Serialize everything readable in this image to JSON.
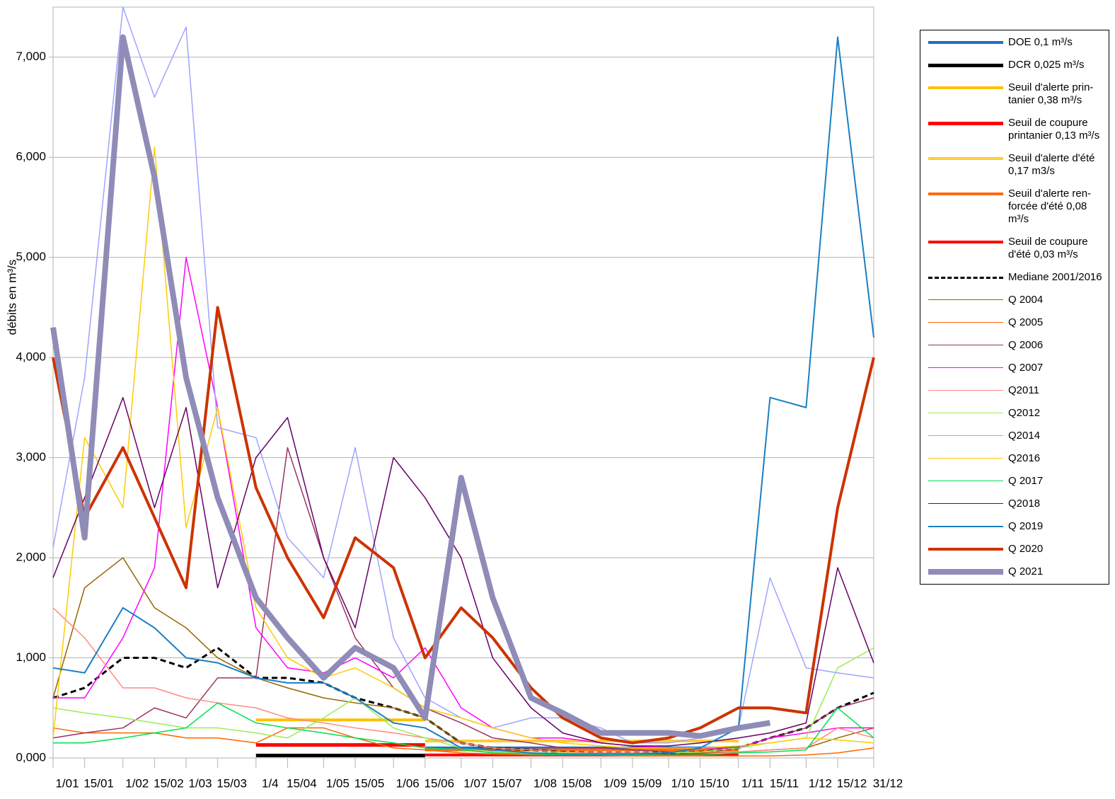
{
  "chart_data": {
    "type": "line",
    "y_label": "débits en m³/s",
    "x": [
      1,
      15,
      32,
      46,
      60,
      74,
      91,
      105,
      121,
      135,
      152,
      166,
      182,
      196,
      213,
      227,
      244,
      258,
      274,
      288,
      305,
      319,
      335,
      349,
      365
    ],
    "xlim": [
      1,
      365
    ],
    "xticks": [
      {
        "value": 1,
        "label": "1/01"
      },
      {
        "value": 15,
        "label": "15/01"
      },
      {
        "value": 32,
        "label": "1/02"
      },
      {
        "value": 46,
        "label": "15/02"
      },
      {
        "value": 60,
        "label": "1/03"
      },
      {
        "value": 74,
        "label": "15/03"
      },
      {
        "value": 91,
        "label": "1/4"
      },
      {
        "value": 105,
        "label": "15/04"
      },
      {
        "value": 121,
        "label": "1/05"
      },
      {
        "value": 135,
        "label": "15/05"
      },
      {
        "value": 152,
        "label": "1/06"
      },
      {
        "value": 166,
        "label": "15/06"
      },
      {
        "value": 182,
        "label": "1/07"
      },
      {
        "value": 196,
        "label": "15/07"
      },
      {
        "value": 213,
        "label": "1/08"
      },
      {
        "value": 227,
        "label": "15/08"
      },
      {
        "value": 244,
        "label": "1/09"
      },
      {
        "value": 258,
        "label": "15/09"
      },
      {
        "value": 274,
        "label": "1/10"
      },
      {
        "value": 288,
        "label": "15/10"
      },
      {
        "value": 305,
        "label": "1/11"
      },
      {
        "value": 319,
        "label": "15/11"
      },
      {
        "value": 335,
        "label": "1/12"
      },
      {
        "value": 349,
        "label": "15/12"
      },
      {
        "value": 365,
        "label": "31/12"
      }
    ],
    "ylim": [
      0,
      7.5
    ],
    "yticks": [
      {
        "value": 0,
        "label": "0,000"
      },
      {
        "value": 1,
        "label": "1,000"
      },
      {
        "value": 2,
        "label": "2,000"
      },
      {
        "value": 3,
        "label": "3,000"
      },
      {
        "value": 4,
        "label": "4,000"
      },
      {
        "value": 5,
        "label": "5,000"
      },
      {
        "value": 6,
        "label": "6,000"
      },
      {
        "value": 7,
        "label": "7,000"
      }
    ],
    "grid": true,
    "legend": "right",
    "series": [
      {
        "name": "DOE 0,1 m³/s",
        "color": "#1f6fc0",
        "width": 4,
        "values": [
          null,
          null,
          null,
          null,
          null,
          null,
          null,
          null,
          null,
          null,
          null,
          0.1,
          0.1,
          0.1,
          0.1,
          0.1,
          0.1,
          0.1,
          0.1,
          0.1,
          0.1,
          null,
          null,
          null,
          null
        ]
      },
      {
        "name": "DCR 0,025 m³/s",
        "color": "#000000",
        "width": 5,
        "values": [
          null,
          null,
          null,
          null,
          null,
          null,
          0.025,
          0.025,
          0.025,
          0.025,
          0.025,
          0.025,
          null,
          null,
          null,
          null,
          null,
          null,
          null,
          null,
          null,
          null,
          null,
          null,
          null
        ]
      },
      {
        "name": "Seuil d'alerte prin-\ntanier 0,38 m³/s",
        "color": "#ffc000",
        "width": 4,
        "values": [
          null,
          null,
          null,
          null,
          null,
          null,
          0.38,
          0.38,
          0.38,
          0.38,
          0.38,
          0.38,
          null,
          null,
          null,
          null,
          null,
          null,
          null,
          null,
          null,
          null,
          null,
          null,
          null
        ]
      },
      {
        "name": "Seuil de coupure\nprintanier 0,13 m³/s",
        "color": "#ff0000",
        "width": 5,
        "values": [
          null,
          null,
          null,
          null,
          null,
          null,
          0.13,
          0.13,
          0.13,
          0.13,
          0.13,
          0.13,
          null,
          null,
          null,
          null,
          null,
          null,
          null,
          null,
          null,
          null,
          null,
          null,
          null
        ]
      },
      {
        "name": "Seuil d'alerte d'été\n0,17 m3/s",
        "color": "#ffcc33",
        "width": 4,
        "values": [
          null,
          null,
          null,
          null,
          null,
          null,
          null,
          null,
          null,
          null,
          null,
          0.17,
          0.17,
          0.17,
          0.17,
          0.17,
          0.17,
          0.17,
          0.17,
          0.17,
          0.17,
          null,
          null,
          null,
          null
        ]
      },
      {
        "name": "Seuil d'alerte ren-\nforcée d'été 0,08\nm³/s",
        "color": "#ff6a13",
        "width": 4,
        "values": [
          null,
          null,
          null,
          null,
          null,
          null,
          null,
          null,
          null,
          null,
          null,
          0.08,
          0.08,
          0.08,
          0.08,
          0.08,
          0.08,
          0.08,
          0.08,
          0.08,
          0.08,
          null,
          null,
          null,
          null
        ]
      },
      {
        "name": "Seuil de coupure\nd'été 0,03 m³/s",
        "color": "#ff0000",
        "width": 4,
        "values": [
          null,
          null,
          null,
          null,
          null,
          null,
          null,
          null,
          null,
          null,
          null,
          0.03,
          0.03,
          0.03,
          0.03,
          0.03,
          0.03,
          0.03,
          0.03,
          0.03,
          0.03,
          null,
          null,
          null,
          null
        ]
      },
      {
        "name": "Mediane 2001/2016",
        "color": "#000000",
        "width": 3,
        "dash": true,
        "values": [
          0.6,
          0.7,
          1.0,
          1.0,
          0.9,
          1.1,
          0.8,
          0.8,
          0.75,
          0.6,
          0.5,
          0.4,
          0.15,
          0.1,
          0.08,
          0.06,
          0.05,
          0.05,
          0.05,
          0.06,
          0.1,
          0.2,
          0.3,
          0.5,
          0.65
        ]
      },
      {
        "name": "Q 2004",
        "color": "#996600",
        "width": 1.5,
        "values": [
          0.6,
          1.7,
          2.0,
          1.5,
          1.3,
          1.0,
          0.8,
          0.7,
          0.6,
          0.55,
          0.5,
          0.4,
          0.15,
          0.1,
          0.08,
          0.06,
          0.05,
          0.05,
          0.05,
          0.05,
          0.06,
          0.08,
          0.1,
          0.2,
          0.3
        ]
      },
      {
        "name": "Q 2005",
        "color": "#ff6600",
        "width": 1.5,
        "values": [
          0.3,
          0.25,
          0.25,
          0.25,
          0.2,
          0.2,
          0.15,
          0.3,
          0.3,
          0.2,
          0.1,
          0.08,
          0.05,
          0.04,
          0.03,
          0.03,
          0.03,
          0.02,
          0.02,
          0.02,
          0.02,
          0.02,
          0.03,
          0.05,
          0.1
        ]
      },
      {
        "name": "Q 2006",
        "color": "#993366",
        "width": 1.5,
        "values": [
          0.2,
          0.25,
          0.3,
          0.5,
          0.4,
          0.8,
          0.8,
          3.1,
          2.0,
          1.2,
          0.7,
          0.5,
          0.35,
          0.2,
          0.15,
          0.1,
          0.1,
          0.08,
          0.06,
          0.06,
          0.1,
          0.2,
          0.3,
          0.5,
          0.6
        ]
      },
      {
        "name": "Q 2007",
        "color": "#ff00ff",
        "width": 1.5,
        "values": [
          0.6,
          0.6,
          1.2,
          1.9,
          5.0,
          3.5,
          1.3,
          0.9,
          0.85,
          1.0,
          0.8,
          1.1,
          0.5,
          0.3,
          0.2,
          0.2,
          0.15,
          0.12,
          0.1,
          0.1,
          0.1,
          0.2,
          0.25,
          0.3,
          0.3
        ]
      },
      {
        "name": "Q2011",
        "color": "#ff8a80",
        "width": 1.5,
        "values": [
          1.5,
          1.2,
          0.7,
          0.7,
          0.6,
          0.55,
          0.5,
          0.4,
          0.35,
          0.3,
          0.25,
          0.2,
          0.15,
          0.1,
          0.08,
          0.06,
          0.05,
          0.05,
          0.05,
          0.06,
          0.06,
          0.08,
          0.1,
          0.3,
          0.2
        ]
      },
      {
        "name": "Q2012",
        "color": "#99ee55",
        "width": 1.5,
        "values": [
          0.5,
          0.45,
          0.4,
          0.35,
          0.3,
          0.3,
          0.25,
          0.2,
          0.4,
          0.6,
          0.3,
          0.2,
          0.1,
          0.06,
          0.05,
          0.05,
          0.04,
          0.04,
          0.05,
          0.06,
          0.1,
          0.15,
          0.2,
          0.9,
          1.1
        ]
      },
      {
        "name": "Q2014",
        "color": "#9fa4ff",
        "width": 1.5,
        "values": [
          2.1,
          3.8,
          7.5,
          6.6,
          7.3,
          3.3,
          3.2,
          2.2,
          1.8,
          3.1,
          1.2,
          0.6,
          0.4,
          0.3,
          0.4,
          0.4,
          0.3,
          0.15,
          0.15,
          0.2,
          0.3,
          1.8,
          0.9,
          0.85,
          0.8
        ]
      },
      {
        "name": "Q2016",
        "color": "#ffcc00",
        "width": 1.5,
        "values": [
          0.2,
          3.2,
          2.5,
          6.1,
          2.3,
          3.5,
          1.5,
          1.0,
          0.8,
          0.9,
          0.7,
          0.5,
          0.4,
          0.3,
          0.2,
          0.15,
          0.12,
          0.1,
          0.1,
          0.1,
          0.12,
          0.15,
          0.2,
          0.18,
          0.15
        ]
      },
      {
        "name": "Q 2017",
        "color": "#00e050",
        "width": 1.5,
        "values": [
          0.15,
          0.15,
          0.2,
          0.25,
          0.3,
          0.55,
          0.35,
          0.3,
          0.25,
          0.2,
          0.15,
          0.1,
          0.08,
          0.05,
          0.04,
          0.03,
          0.03,
          0.03,
          0.03,
          0.03,
          0.05,
          0.06,
          0.08,
          0.5,
          0.2
        ]
      },
      {
        "name": "Q2018",
        "color": "#660066",
        "width": 1.5,
        "values": [
          1.8,
          2.6,
          3.6,
          2.5,
          3.5,
          1.7,
          3.0,
          3.4,
          2.0,
          1.3,
          3.0,
          2.6,
          2.0,
          1.0,
          0.5,
          0.25,
          0.15,
          0.12,
          0.12,
          0.15,
          0.2,
          0.25,
          0.35,
          1.9,
          0.95
        ]
      },
      {
        "name": "Q 2019",
        "color": "#1a7fc4",
        "width": 2,
        "values": [
          0.9,
          0.85,
          1.5,
          1.3,
          1.0,
          0.95,
          0.8,
          0.75,
          0.75,
          0.6,
          0.35,
          0.3,
          0.1,
          0.08,
          0.05,
          0.04,
          0.04,
          0.04,
          0.05,
          0.1,
          0.3,
          3.6,
          3.5,
          7.2,
          4.2
        ]
      },
      {
        "name": "Q 2020",
        "color": "#cc3300",
        "width": 4,
        "values": [
          4.0,
          2.4,
          3.1,
          2.4,
          1.7,
          4.5,
          2.7,
          2.0,
          1.4,
          2.2,
          1.9,
          1.0,
          1.5,
          1.2,
          0.7,
          0.4,
          0.2,
          0.15,
          0.2,
          0.3,
          0.5,
          0.5,
          0.45,
          2.5,
          4.0
        ]
      },
      {
        "name": "Q 2021",
        "color": "#8f8cb8",
        "width": 8,
        "values": [
          4.3,
          2.2,
          7.2,
          5.8,
          3.8,
          2.6,
          1.6,
          1.2,
          0.8,
          1.1,
          0.9,
          0.4,
          2.8,
          1.6,
          0.6,
          0.45,
          0.25,
          0.25,
          0.25,
          0.22,
          0.3,
          0.35,
          null,
          null,
          null
        ]
      }
    ]
  }
}
